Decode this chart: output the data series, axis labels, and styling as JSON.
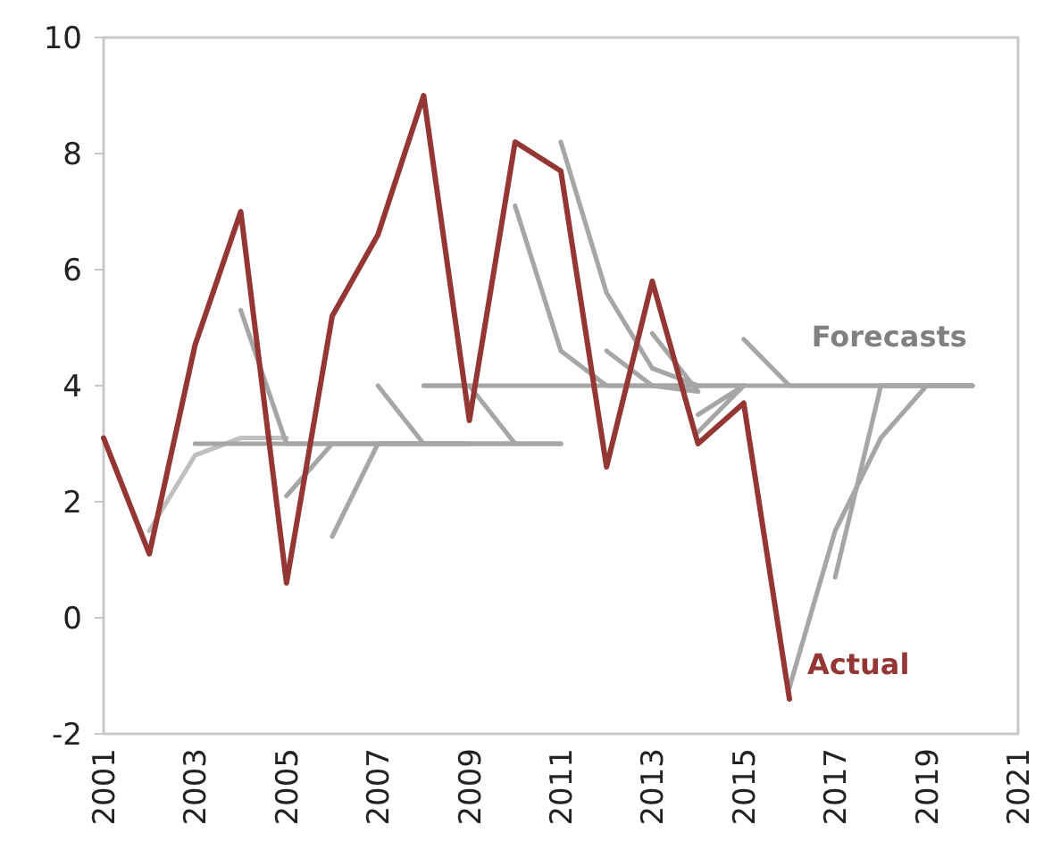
{
  "chart_data": {
    "type": "line",
    "xlim": [
      2001,
      2021
    ],
    "xticks": [
      2001,
      2003,
      2005,
      2007,
      2009,
      2011,
      2013,
      2015,
      2017,
      2019,
      2021
    ],
    "ylim": [
      -2,
      10
    ],
    "yticks": [
      -2,
      0,
      2,
      4,
      6,
      8,
      10
    ],
    "grid": false,
    "legend": false,
    "marker": "none",
    "line_style": "solid",
    "series": [
      {
        "color": "#bfbfbf",
        "x": [
          2002,
          2003,
          2004,
          2005
        ],
        "values": [
          1.5,
          2.8,
          3.1,
          3.1
        ]
      },
      {
        "color": "#a6a6a6",
        "x": [
          2003,
          2004,
          2005,
          2006,
          2007,
          2008
        ],
        "values": [
          3.0,
          3.0,
          3.0,
          3.0,
          3.0,
          3.0
        ]
      },
      {
        "color": "#a6a6a6",
        "x": [
          2004,
          2005,
          2006,
          2007,
          2008,
          2009
        ],
        "values": [
          5.3,
          3.0,
          3.0,
          3.0,
          3.0,
          3.0
        ]
      },
      {
        "color": "#a6a6a6",
        "x": [
          2005,
          2006,
          2007,
          2008,
          2009,
          2010
        ],
        "values": [
          2.1,
          3.0,
          3.0,
          3.0,
          3.0,
          3.0
        ]
      },
      {
        "color": "#a6a6a6",
        "x": [
          2006,
          2007,
          2008,
          2009,
          2010,
          2011
        ],
        "values": [
          1.4,
          3.0,
          3.0,
          3.0,
          3.0,
          3.0
        ]
      },
      {
        "color": "#a6a6a6",
        "x": [
          2007,
          2008,
          2009
        ],
        "values": [
          4.0,
          3.0,
          3.0
        ]
      },
      {
        "color": "#a6a6a6",
        "x": [
          2008,
          2009,
          2010,
          2011
        ],
        "values": [
          4.0,
          4.0,
          3.0,
          3.0
        ]
      },
      {
        "color": "#a6a6a6",
        "x": [
          2010,
          2011,
          2012,
          2013,
          2014,
          2015
        ],
        "values": [
          7.1,
          4.6,
          4.0,
          4.0,
          4.0,
          4.0
        ]
      },
      {
        "color": "#a6a6a6",
        "x": [
          2011,
          2012,
          2013,
          2014
        ],
        "values": [
          8.2,
          5.6,
          4.3,
          4.0
        ]
      },
      {
        "color": "#a6a6a6",
        "x": [
          2012,
          2013,
          2014
        ],
        "values": [
          4.6,
          4.0,
          3.9
        ]
      },
      {
        "color": "#a6a6a6",
        "x": [
          2013,
          2014
        ],
        "values": [
          4.9,
          3.9
        ]
      },
      {
        "color": "#a6a6a6",
        "x": [
          2014,
          2015
        ],
        "values": [
          3.5,
          4.0
        ]
      },
      {
        "color": "#a6a6a6",
        "x": [
          2014,
          2015
        ],
        "values": [
          3.2,
          4.0
        ]
      },
      {
        "color": "#a6a6a6",
        "x": [
          2015,
          2016,
          2017,
          2018,
          2019,
          2020
        ],
        "values": [
          4.8,
          4.0,
          4.0,
          4.0,
          4.0,
          4.0
        ]
      },
      {
        "color": "#a6a6a6",
        "x": [
          2016,
          2017,
          2018,
          2019,
          2020
        ],
        "values": [
          -1.2,
          1.5,
          3.1,
          4.0,
          4.0
        ]
      },
      {
        "name": "Forecasts",
        "color": "#a6a6a6",
        "x": [
          2008,
          2009,
          2010,
          2011,
          2012,
          2013,
          2014,
          2015,
          2016,
          2017,
          2018,
          2019,
          2020
        ],
        "values": [
          4.0,
          4.0,
          4.0,
          4.0,
          4.0,
          4.0,
          4.0,
          4.0,
          4.0,
          4.0,
          4.0,
          4.0,
          4.0
        ]
      },
      {
        "color": "#a6a6a6",
        "x": [
          2017,
          2018,
          2019,
          2020
        ],
        "values": [
          0.7,
          4.0,
          4.0,
          4.0
        ]
      },
      {
        "name": "Actual",
        "color": "#943634",
        "x": [
          2001,
          2002,
          2003,
          2004,
          2005,
          2006,
          2007,
          2008,
          2009,
          2010,
          2011,
          2012,
          2013,
          2014,
          2015,
          2016
        ],
        "values": [
          3.1,
          1.1,
          4.7,
          7.0,
          0.6,
          5.2,
          6.6,
          9.0,
          3.4,
          8.2,
          7.7,
          2.6,
          5.8,
          3.0,
          3.7,
          -1.4
        ]
      }
    ]
  }
}
